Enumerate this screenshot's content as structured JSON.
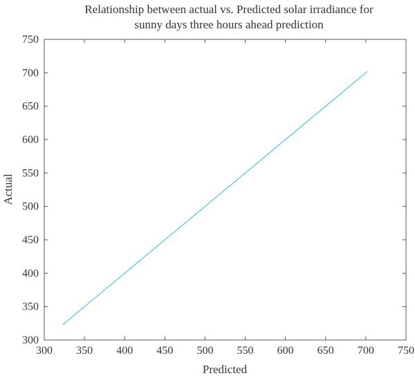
{
  "chart_data": {
    "type": "line",
    "title_line1": "Relationship between actual vs. Predicted solar irradiance for",
    "title_line2": "sunny days three hours ahead prediction",
    "xlabel": "Predicted",
    "ylabel": "Actual",
    "xlim": [
      300,
      750
    ],
    "ylim": [
      300,
      750
    ],
    "xticks": [
      "300",
      "350",
      "400",
      "450",
      "500",
      "550",
      "600",
      "650",
      "700",
      "750"
    ],
    "yticks": [
      "300",
      "350",
      "400",
      "450",
      "500",
      "550",
      "600",
      "650",
      "700",
      "750"
    ],
    "grid": false,
    "series": [
      {
        "x": [
          323,
          702
        ],
        "y": [
          323,
          702
        ],
        "color": "#4fc3da"
      }
    ]
  }
}
